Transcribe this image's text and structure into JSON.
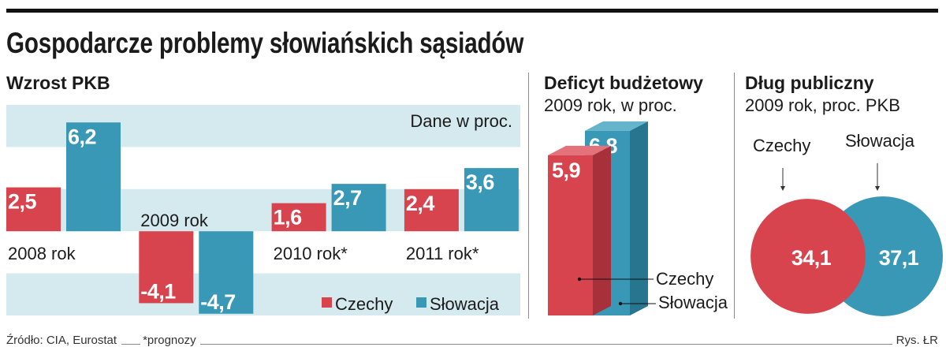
{
  "title": "Gospodarcze problemy słowiańskich sąsiadów",
  "colors": {
    "czechy": "#d8444e",
    "czechy_dark": "#a8303a",
    "czechy_light": "#e4727a",
    "slowacja": "#3a98b7",
    "slowacja_dark": "#27758f",
    "slowacja_light": "#66b3cc",
    "grid_band": "#d5eaef"
  },
  "chart_data": [
    {
      "type": "bar",
      "title": "Wzrost PKB",
      "note": "Dane w proc.",
      "categories": [
        "2008 rok",
        "2009 rok",
        "2010 rok*",
        "2011 rok*"
      ],
      "series": [
        {
          "name": "Czechy",
          "values": [
            2.5,
            -4.1,
            1.6,
            2.4
          ],
          "labels": [
            "2,5",
            "-4,1",
            "1,6",
            "2,4"
          ]
        },
        {
          "name": "Słowacja",
          "values": [
            6.2,
            -4.7,
            2.7,
            3.6
          ],
          "labels": [
            "6,2",
            "-4,7",
            "2,7",
            "3,6"
          ]
        }
      ],
      "ylim": [
        -4.8,
        7.2
      ],
      "grid": true
    },
    {
      "type": "bar",
      "title": "Deficyt budżetowy",
      "subtitle": "2009 rok, w proc.",
      "categories": [
        "Czechy",
        "Słowacja"
      ],
      "values": [
        5.9,
        6.8
      ],
      "labels": [
        "5,9",
        "6,8"
      ],
      "ylim": [
        0,
        7.0
      ]
    },
    {
      "type": "scatter",
      "title": "Dług publiczny",
      "subtitle": "2009 rok, proc. PKB",
      "categories": [
        "Czechy",
        "Słowacja"
      ],
      "values": [
        34.1,
        37.1
      ],
      "labels": [
        "34,1",
        "37,1"
      ]
    }
  ],
  "footer": {
    "source": "Źródło: CIA, Eurostat",
    "note": "*prognozy",
    "credit": "Rys. ŁR"
  }
}
